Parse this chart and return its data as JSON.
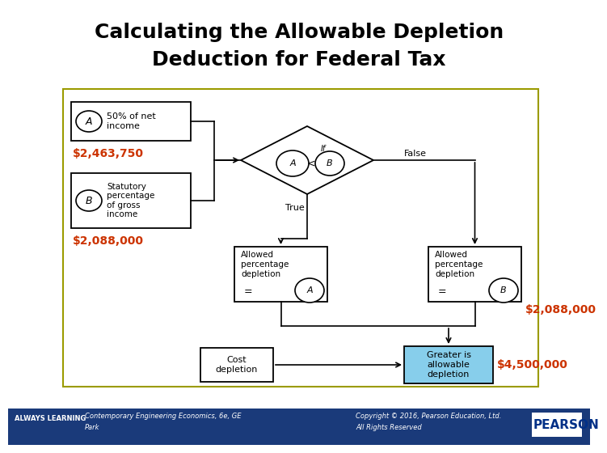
{
  "title_line1": "Calculating the Allowable Depletion",
  "title_line2": "Deduction for Federal Tax",
  "title_fontsize": 18,
  "title_color": "#000000",
  "background_color": "#ffffff",
  "footer_bg_color": "#1a3a7a",
  "footer_text_left1": "ALWAYS LEARNING",
  "footer_text_left2": "Contemporary Engineering Economics, 6e, GE",
  "footer_text_left3": "Park",
  "footer_text_right1": "Copyright © 2016, Pearson Education, Ltd.",
  "footer_text_right2": "All Rights Reserved",
  "footer_text_pearson": "PEARSON",
  "box_border_color": "#9b9b00",
  "value_color": "#cc3300",
  "value1": "$2,463,750",
  "value2": "$2,088,000",
  "value3": "$2,088,000",
  "value4": "$4,500,000",
  "greater_box_color": "#87ceeb"
}
